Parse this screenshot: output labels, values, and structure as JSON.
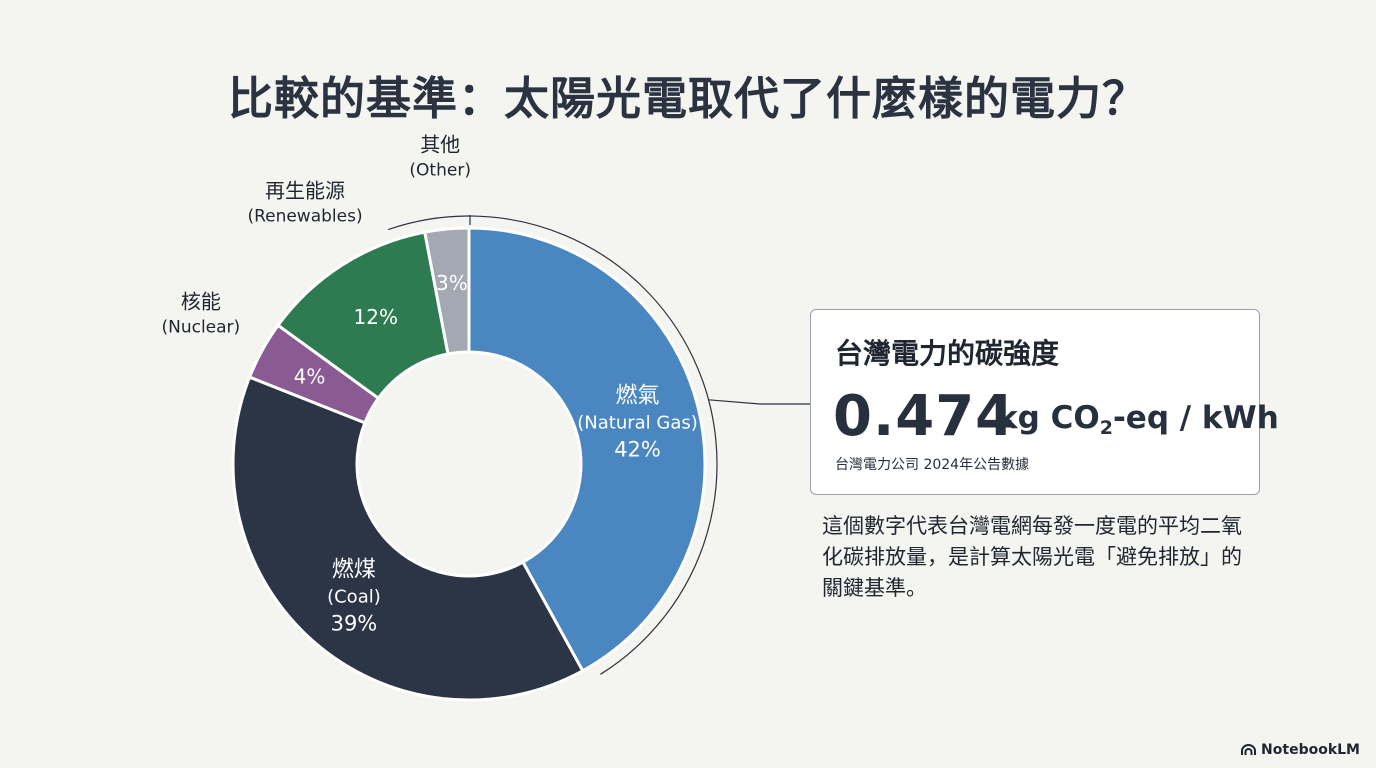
{
  "title": "比較的基準：太陽光電取代了什麼樣的電力？",
  "chart_data": {
    "type": "pie",
    "donut": true,
    "slices": [
      {
        "name": "燃氣",
        "name_en": "(Natural Gas)",
        "value": 42,
        "label": "42%",
        "color": "#4a86c0",
        "label_position": "inside"
      },
      {
        "name": "燃煤",
        "name_en": "(Coal)",
        "value": 39,
        "label": "39%",
        "color": "#2b3546",
        "label_position": "inside"
      },
      {
        "name": "核能",
        "name_en": "(Nuclear)",
        "value": 4,
        "label": "4%",
        "color": "#8a5a92",
        "label_position": "outside"
      },
      {
        "name": "再生能源",
        "name_en": "(Renewables)",
        "value": 12,
        "label": "12%",
        "color": "#2e7b52",
        "label_position": "outside"
      },
      {
        "name": "其他",
        "name_en": "(Other)",
        "value": 3,
        "label": "3%",
        "color": "#a4a8b2",
        "label_position": "outside"
      }
    ]
  },
  "card": {
    "title": "台灣電力的碳強度",
    "value": "0.474",
    "unit_prefix": "kg CO",
    "unit_sub": "2",
    "unit_suffix": "-eq / kWh",
    "source": "台灣電力公司 2024年公告數據"
  },
  "description": "這個數字代表台灣電網每發一度電的平均二氧化碳排放量，是計算太陽光電「避免排放」的關鍵基準。",
  "brand": {
    "name": "NotebookLM",
    "icon": "notebooklm-logo-icon"
  }
}
